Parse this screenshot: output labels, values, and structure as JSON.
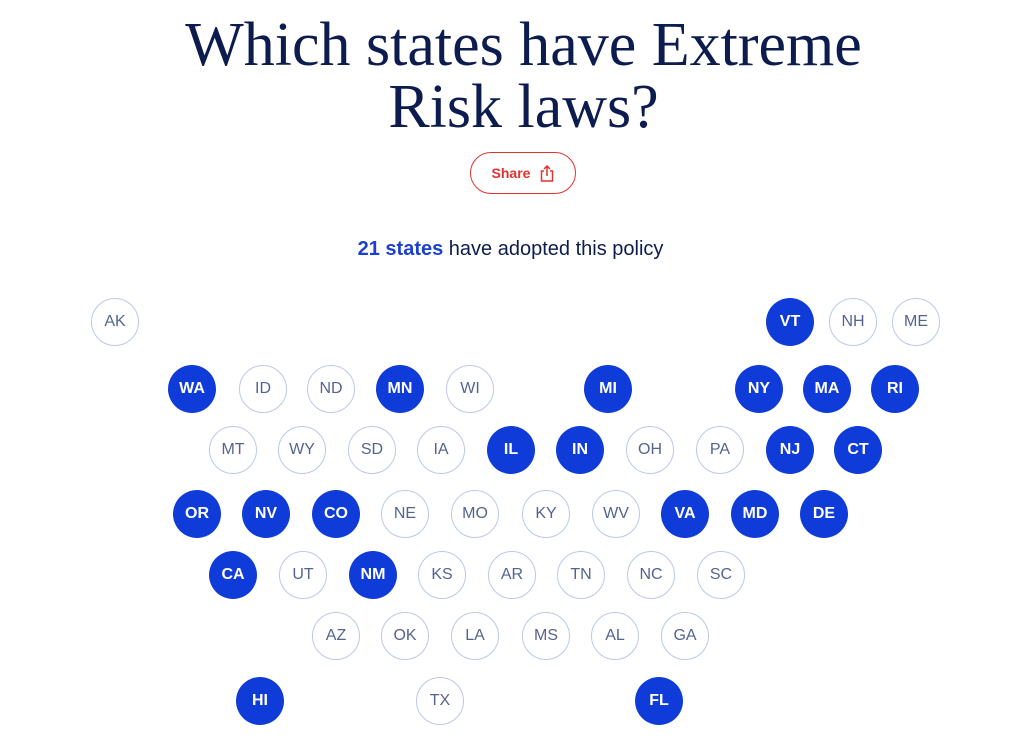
{
  "header": {
    "title": "Which states have Extreme Risk laws?",
    "share": "Share"
  },
  "summary": {
    "count": "21 states",
    "text": "have adopted this policy"
  },
  "states": [
    {
      "label": "AK",
      "adopted": false
    },
    {
      "label": "VT",
      "adopted": true
    },
    {
      "label": "NH",
      "adopted": false
    },
    {
      "label": "ME",
      "adopted": false
    },
    {
      "label": "WA",
      "adopted": true
    },
    {
      "label": "ID",
      "adopted": false
    },
    {
      "label": "ND",
      "adopted": false
    },
    {
      "label": "MN",
      "adopted": true
    },
    {
      "label": "WI",
      "adopted": false
    },
    {
      "label": "MI",
      "adopted": true
    },
    {
      "label": "NY",
      "adopted": true
    },
    {
      "label": "MA",
      "adopted": true
    },
    {
      "label": "RI",
      "adopted": true
    },
    {
      "label": "MT",
      "adopted": false
    },
    {
      "label": "WY",
      "adopted": false
    },
    {
      "label": "SD",
      "adopted": false
    },
    {
      "label": "IA",
      "adopted": false
    },
    {
      "label": "IL",
      "adopted": true
    },
    {
      "label": "IN",
      "adopted": true
    },
    {
      "label": "OH",
      "adopted": false
    },
    {
      "label": "PA",
      "adopted": false
    },
    {
      "label": "NJ",
      "adopted": true
    },
    {
      "label": "CT",
      "adopted": true
    },
    {
      "label": "OR",
      "adopted": true
    },
    {
      "label": "NV",
      "adopted": true
    },
    {
      "label": "CO",
      "adopted": true
    },
    {
      "label": "NE",
      "adopted": false
    },
    {
      "label": "MO",
      "adopted": false
    },
    {
      "label": "KY",
      "adopted": false
    },
    {
      "label": "WV",
      "adopted": false
    },
    {
      "label": "VA",
      "adopted": true
    },
    {
      "label": "MD",
      "adopted": true
    },
    {
      "label": "DE",
      "adopted": true
    },
    {
      "label": "CA",
      "adopted": true
    },
    {
      "label": "UT",
      "adopted": false
    },
    {
      "label": "NM",
      "adopted": true
    },
    {
      "label": "KS",
      "adopted": false
    },
    {
      "label": "AR",
      "adopted": false
    },
    {
      "label": "TN",
      "adopted": false
    },
    {
      "label": "NC",
      "adopted": false
    },
    {
      "label": "SC",
      "adopted": false
    },
    {
      "label": "AZ",
      "adopted": false
    },
    {
      "label": "OK",
      "adopted": false
    },
    {
      "label": "LA",
      "adopted": false
    },
    {
      "label": "MS",
      "adopted": false
    },
    {
      "label": "AL",
      "adopted": false
    },
    {
      "label": "GA",
      "adopted": false
    },
    {
      "label": "HI",
      "adopted": true
    },
    {
      "label": "TX",
      "adopted": false
    },
    {
      "label": "FL",
      "adopted": true
    }
  ]
}
